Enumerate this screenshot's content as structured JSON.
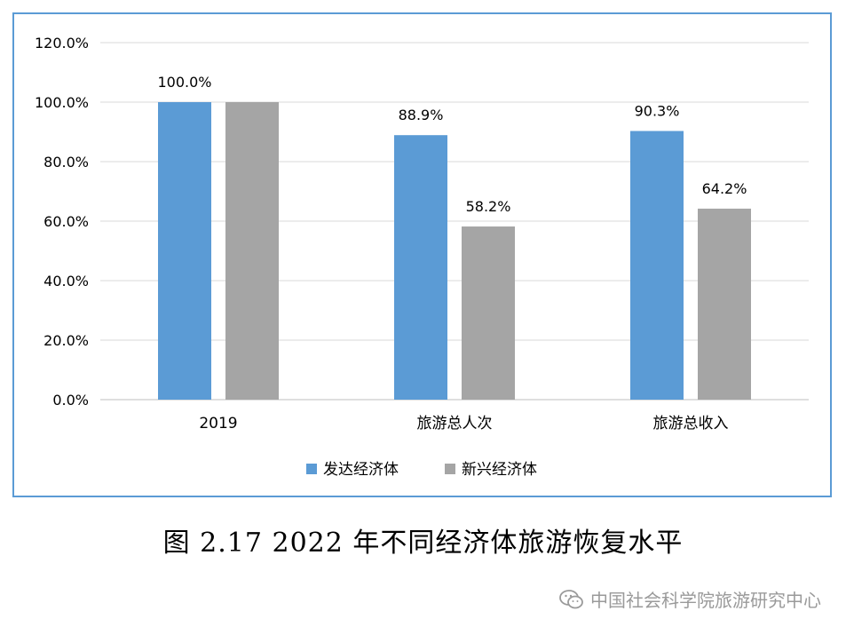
{
  "chart_data": {
    "type": "bar",
    "categories": [
      "2019",
      "旅游总人次",
      "旅游总收入"
    ],
    "series": [
      {
        "name": "发达经济体",
        "values": [
          100.0,
          88.9,
          90.3
        ],
        "color": "#5b9bd5",
        "labels": [
          "100.0%",
          "88.9%",
          "90.3%"
        ]
      },
      {
        "name": "新兴经济体",
        "values": [
          100.0,
          58.2,
          64.2
        ],
        "color": "#a5a5a5",
        "labels": [
          "",
          "58.2%",
          "64.2%"
        ]
      }
    ],
    "yticks": [
      "0.0%",
      "20.0%",
      "40.0%",
      "60.0%",
      "80.0%",
      "100.0%",
      "120.0%"
    ],
    "ylim": [
      0,
      120
    ],
    "grid": true,
    "legend": "bottom"
  },
  "caption": "图 2.17 2022 年不同经济体旅游恢复水平",
  "watermark": {
    "icon": "wechat-icon",
    "text": "中国社会科学院旅游研究中心"
  }
}
